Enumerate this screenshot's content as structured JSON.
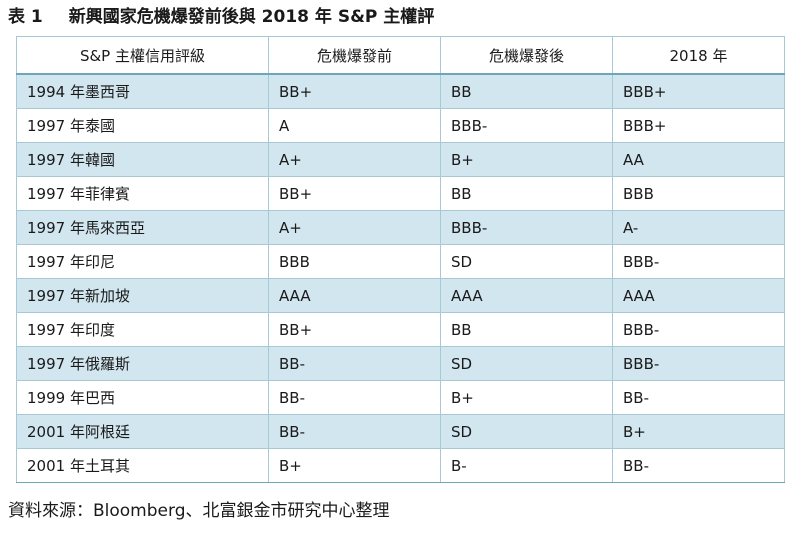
{
  "caption": {
    "number": "表 1",
    "title": "新興國家危機爆發前後與 2018 年 S&P 主權評"
  },
  "table": {
    "headers": [
      "S&P 主權信用評級",
      "危機爆發前",
      "危機爆發後",
      "2018 年"
    ],
    "rows": [
      [
        "1994 年墨西哥",
        "BB+",
        "BB",
        "BBB+"
      ],
      [
        "1997 年泰國",
        "A",
        "BBB-",
        "BBB+"
      ],
      [
        "1997 年韓國",
        "A+",
        "B+",
        "AA"
      ],
      [
        "1997 年菲律賓",
        "BB+",
        "BB",
        "BBB"
      ],
      [
        "1997 年馬來西亞",
        "A+",
        "BBB-",
        "A-"
      ],
      [
        "1997 年印尼",
        "BBB",
        "SD",
        "BBB-"
      ],
      [
        "1997 年新加坡",
        "AAA",
        "AAA",
        "AAA"
      ],
      [
        "1997 年印度",
        "BB+",
        "BB",
        "BBB-"
      ],
      [
        "1997 年俄羅斯",
        "BB-",
        "SD",
        "BBB-"
      ],
      [
        "1999 年巴西",
        "BB-",
        "B+",
        "BB-"
      ],
      [
        "2001 年阿根廷",
        "BB-",
        "SD",
        "B+"
      ],
      [
        "2001 年土耳其",
        "B+",
        "B-",
        "BB-"
      ]
    ]
  },
  "source": "資料來源：Bloomberg、北富銀金市研究中心整理",
  "colors": {
    "row_band": "#d2e6ef",
    "border": "#a8c8d6",
    "header_rule": "#6fa5bb"
  }
}
